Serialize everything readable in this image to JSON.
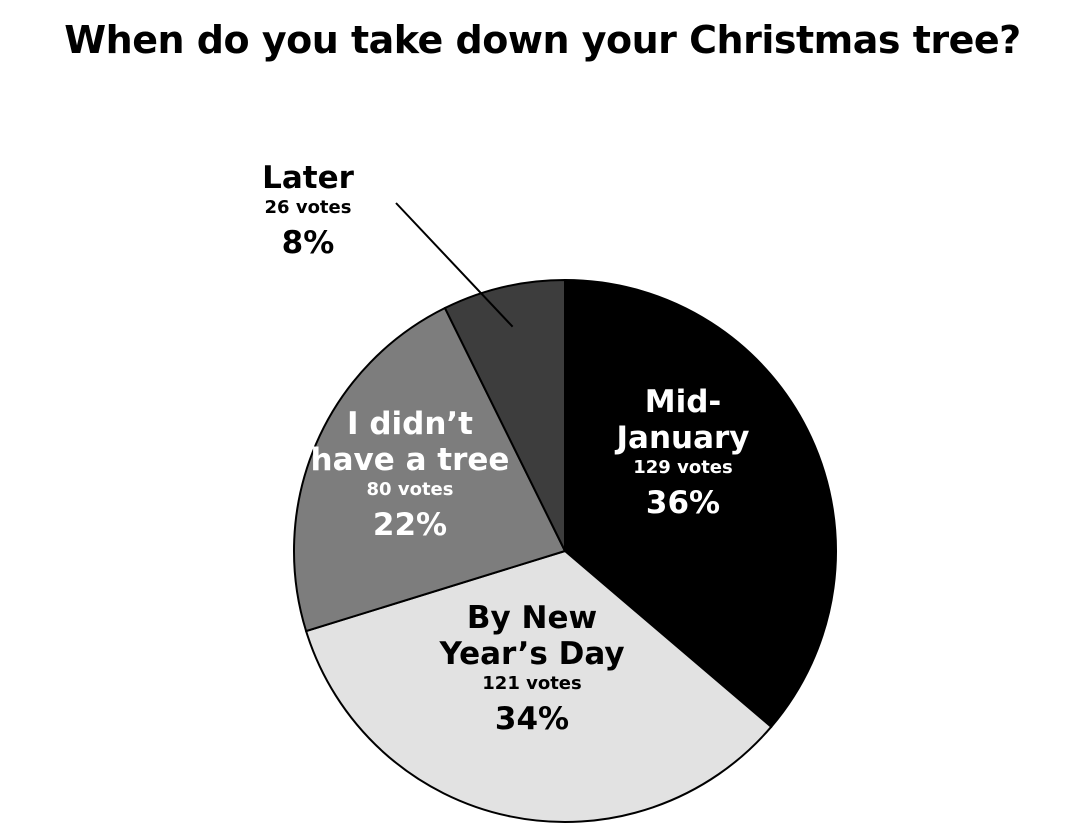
{
  "chart_data": {
    "type": "pie",
    "title": "When do you take down your Christmas tree?",
    "slices": [
      {
        "name": "Mid-January",
        "label_lines": [
          "Mid-",
          "January"
        ],
        "votes": 129,
        "votes_label": "129 votes",
        "percent": 36,
        "percent_label": "36%",
        "color": "#000000",
        "text_color": "#ffffff"
      },
      {
        "name": "By New Year's Day",
        "label_lines": [
          "By New",
          "Year’s Day"
        ],
        "votes": 121,
        "votes_label": "121 votes",
        "percent": 34,
        "percent_label": "34%",
        "color": "#e2e2e2",
        "text_color": "#000000"
      },
      {
        "name": "I didn't have a tree",
        "label_lines": [
          "I didn’t",
          "have a tree"
        ],
        "votes": 80,
        "votes_label": "80 votes",
        "percent": 22,
        "percent_label": "22%",
        "color": "#7d7d7d",
        "text_color": "#ffffff"
      },
      {
        "name": "Later",
        "label_lines": [
          "Later"
        ],
        "votes": 26,
        "votes_label": "26 votes",
        "percent": 8,
        "percent_label": "8%",
        "color": "#3d3d3d",
        "text_color": "#000000"
      }
    ]
  }
}
